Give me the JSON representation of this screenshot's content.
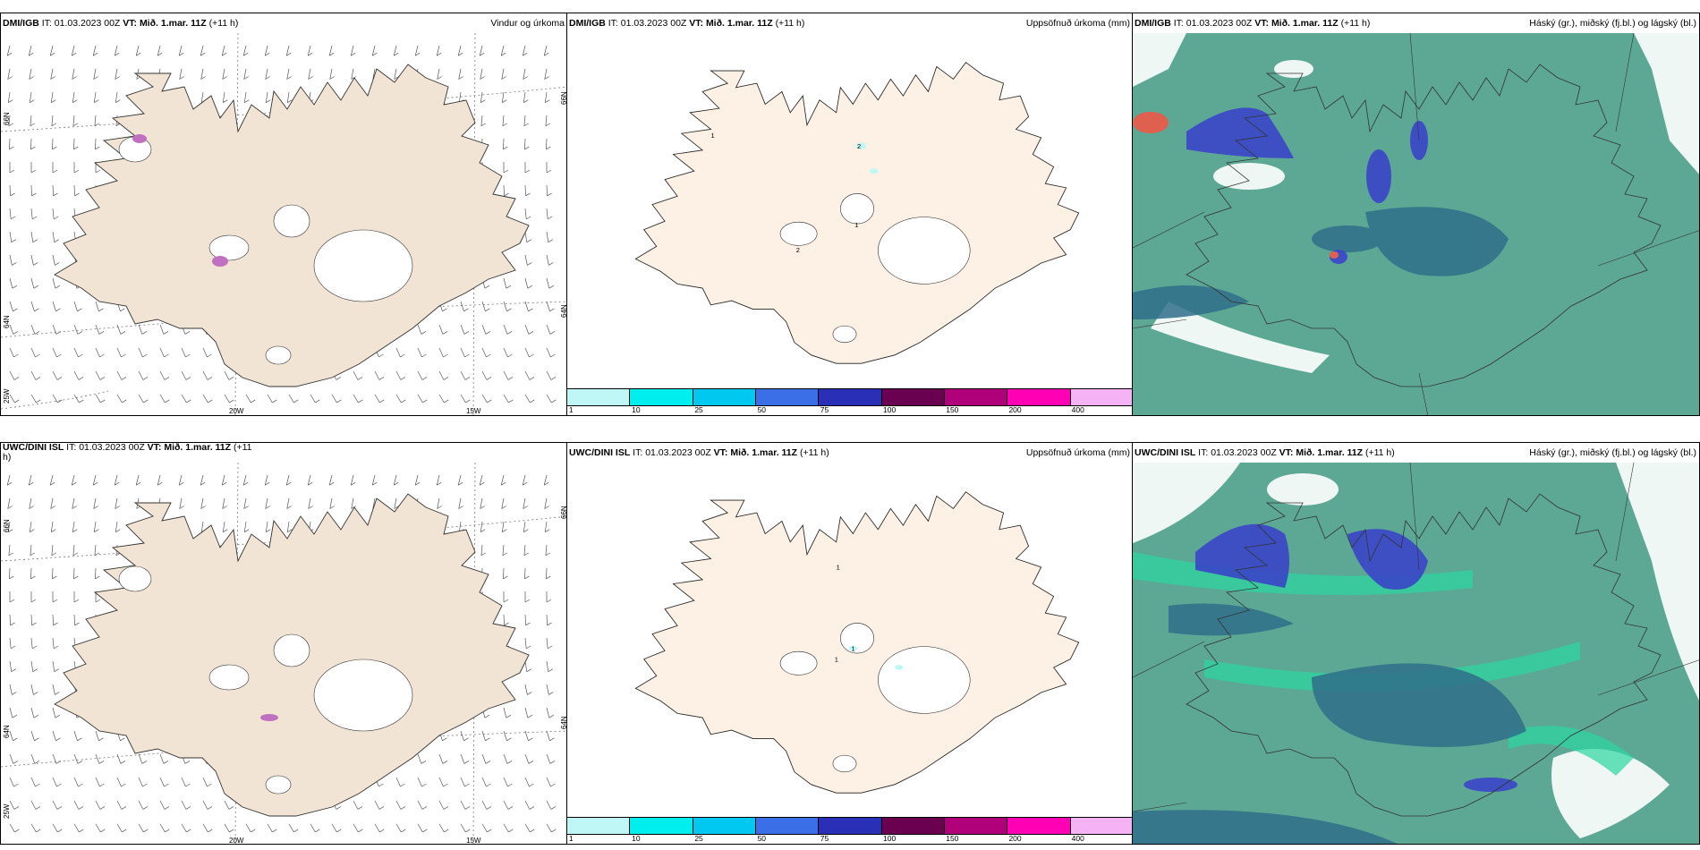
{
  "panels": {
    "p1": {
      "model": "DMI/IGB",
      "it_label": "IT:",
      "it_value": "01.03.2023 00Z",
      "vt_label": "VT:",
      "vt_value": "Mið. 1.mar. 11Z",
      "lead": "(+11 h)",
      "title": "Vindur og úrkoma",
      "lat_labels": [
        "66N",
        "64N",
        "25W"
      ],
      "lon_labels": [
        "20W",
        "15W"
      ],
      "right_labels": [
        "66N",
        "64N"
      ]
    },
    "p2": {
      "model": "DMI/IGB",
      "it_label": "IT:",
      "it_value": "01.03.2023 00Z",
      "vt_label": "VT:",
      "vt_value": "Mið. 1.mar. 11Z",
      "lead": "(+11 h)",
      "title": "Uppsöfnuð úrkoma (mm)",
      "map_values": [
        "1",
        "2",
        "1",
        "2"
      ]
    },
    "p3": {
      "model": "DMI/IGB",
      "it_label": "IT:",
      "it_value": "01.03.2023 00Z",
      "vt_label": "VT:",
      "vt_value": "Mið. 1.mar. 11Z",
      "lead": "(+11 h)",
      "title": "Háský (gr.), miðský (fj.bl.) og lágský (bl.)"
    },
    "p4": {
      "model": "UWC/DINI ISL",
      "it_label": "IT:",
      "it_value": "01.03.2023 00Z",
      "vt_label": "VT:",
      "vt_value": "Mið. 1.mar. 11Z",
      "lead": "(+11",
      "lead_cont": "h)",
      "title": "",
      "lat_labels": [
        "66N",
        "64N",
        "25W"
      ],
      "lon_labels": [
        "20W",
        "15W"
      ],
      "right_labels": [
        "66N",
        "64N"
      ]
    },
    "p5": {
      "model": "UWC/DINI ISL",
      "it_label": "IT:",
      "it_value": "01.03.2023 00Z",
      "vt_label": "VT:",
      "vt_value": "Mið. 1.mar. 11Z",
      "lead": "(+11 h)",
      "title": "Uppsöfnuð úrkoma (mm)",
      "map_values": [
        "1",
        "1",
        "1"
      ]
    },
    "p6": {
      "model": "UWC/DINI ISL",
      "it_label": "IT:",
      "it_value": "01.03.2023 00Z",
      "vt_label": "VT:",
      "vt_value": "Mið. 1.mar. 11Z",
      "lead": "(+11 h)",
      "title": "Háský (gr.), miðský (fj.bl.) og lágský (bl.)"
    }
  },
  "legend": {
    "labels": [
      "1",
      "10",
      "25",
      "50",
      "75",
      "100",
      "150",
      "200",
      "400"
    ],
    "colors": [
      "#bff7f7",
      "#00eeee",
      "#00c8f0",
      "#3a6fe8",
      "#2a2fb8",
      "#6b0050",
      "#b0007a",
      "#ff00b4",
      "#f5b3f5"
    ]
  },
  "colors": {
    "land_wind": "#f2e4d4",
    "land_precip": "#fdf0e4",
    "cloud_high": "#5da894",
    "cloud_mid": "#2f6f8a",
    "cloud_low": "#3a45c8"
  }
}
